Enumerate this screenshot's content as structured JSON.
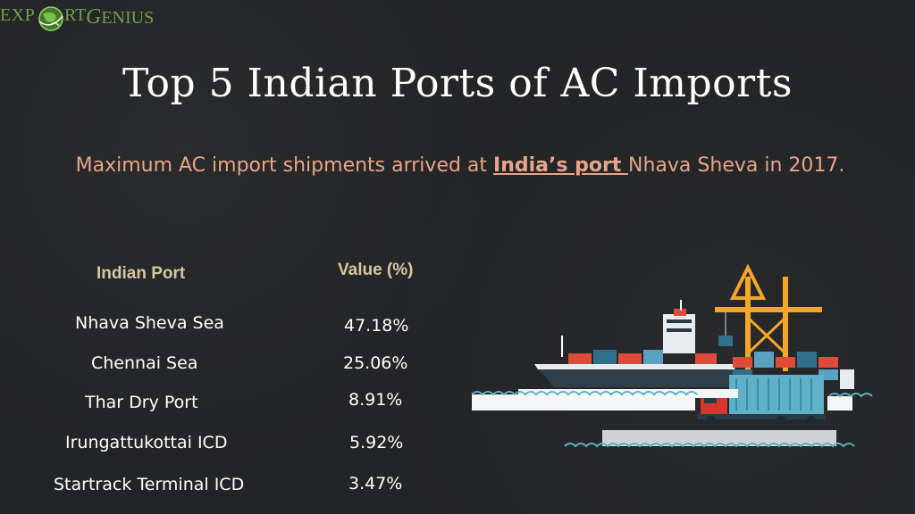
{
  "logo": {
    "part1": "EXP",
    "part2": "RT",
    "part3": "ENIUS",
    "g_letter": "G"
  },
  "title": "Top 5 Indian Ports of AC Imports",
  "subtitle": {
    "before": "Maximum AC import shipments arrived at ",
    "link": "India’s port ",
    "after": "Nhava Sheva in 2017."
  },
  "table": {
    "headers": {
      "port": "Indian Port",
      "value": "Value (%)"
    },
    "rows": [
      {
        "port": "Nhava Sheva Sea",
        "value": "47.18%"
      },
      {
        "port": "Chennai Sea",
        "value": "25.06%"
      },
      {
        "port": "Thar Dry Port",
        "value": "8.91%"
      },
      {
        "port": "Irungattukottai ICD",
        "value": "5.92%"
      },
      {
        "port": "Startrack Terminal ICD",
        "value": "3.47%"
      }
    ]
  },
  "colors": {
    "background": "#232426",
    "accent": "#e8a48a",
    "header": "#d8c8a0",
    "logo": "#6fa04a"
  },
  "illustration": "port-cargo-ship-crane-truck"
}
